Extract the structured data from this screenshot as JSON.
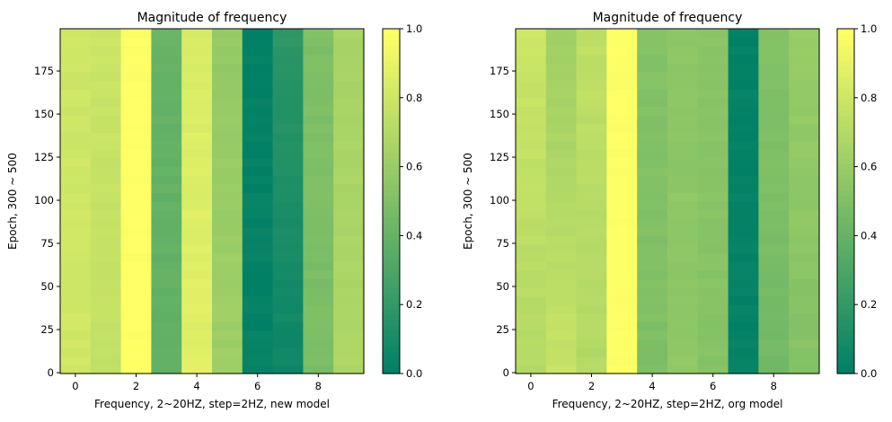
{
  "chart_data": [
    {
      "type": "heatmap",
      "title": "Magnitude of frequency",
      "xlabel": "Frequency, 2~20HZ, step=2HZ, new model",
      "ylabel": "Epoch, 300 ~ 500",
      "xlim": [
        -0.5,
        9.5
      ],
      "ylim": [
        -0.5,
        199.5
      ],
      "x_ticks": [
        0,
        2,
        4,
        6,
        8
      ],
      "y_ticks": [
        0,
        25,
        50,
        75,
        100,
        125,
        150,
        175
      ],
      "colorbar": {
        "min": 0.0,
        "max": 1.0,
        "ticks": [
          "0.0",
          "0.2",
          "0.4",
          "0.6",
          "0.8",
          "1.0"
        ]
      },
      "colormap": "summer",
      "grid": false,
      "column_values": [
        0.82,
        0.76,
        1.0,
        0.38,
        0.88,
        0.62,
        0.02,
        0.05,
        0.48,
        0.68
      ],
      "column_values_top": [
        0.8,
        0.8,
        1.0,
        0.4,
        0.85,
        0.58,
        0.02,
        0.18,
        0.5,
        0.66
      ]
    },
    {
      "type": "heatmap",
      "title": "Magnitude of frequency",
      "xlabel": "Frequency, 2~20HZ, step=2HZ, org model",
      "ylabel": "Epoch, 300 ~ 500",
      "xlim": [
        -0.5,
        9.5
      ],
      "ylim": [
        -0.5,
        199.5
      ],
      "x_ticks": [
        0,
        2,
        4,
        6,
        8
      ],
      "y_ticks": [
        0,
        25,
        50,
        75,
        100,
        125,
        150,
        175
      ],
      "colorbar": {
        "min": 0.0,
        "max": 1.0,
        "ticks": [
          "0.0",
          "0.2",
          "0.4",
          "0.6",
          "0.8",
          "1.0"
        ]
      },
      "colormap": "summer",
      "grid": false,
      "column_values": [
        0.7,
        0.78,
        0.7,
        1.0,
        0.5,
        0.56,
        0.52,
        0.02,
        0.45,
        0.52
      ],
      "column_values_top": [
        0.8,
        0.62,
        0.75,
        1.0,
        0.52,
        0.55,
        0.55,
        0.02,
        0.52,
        0.6
      ]
    }
  ]
}
